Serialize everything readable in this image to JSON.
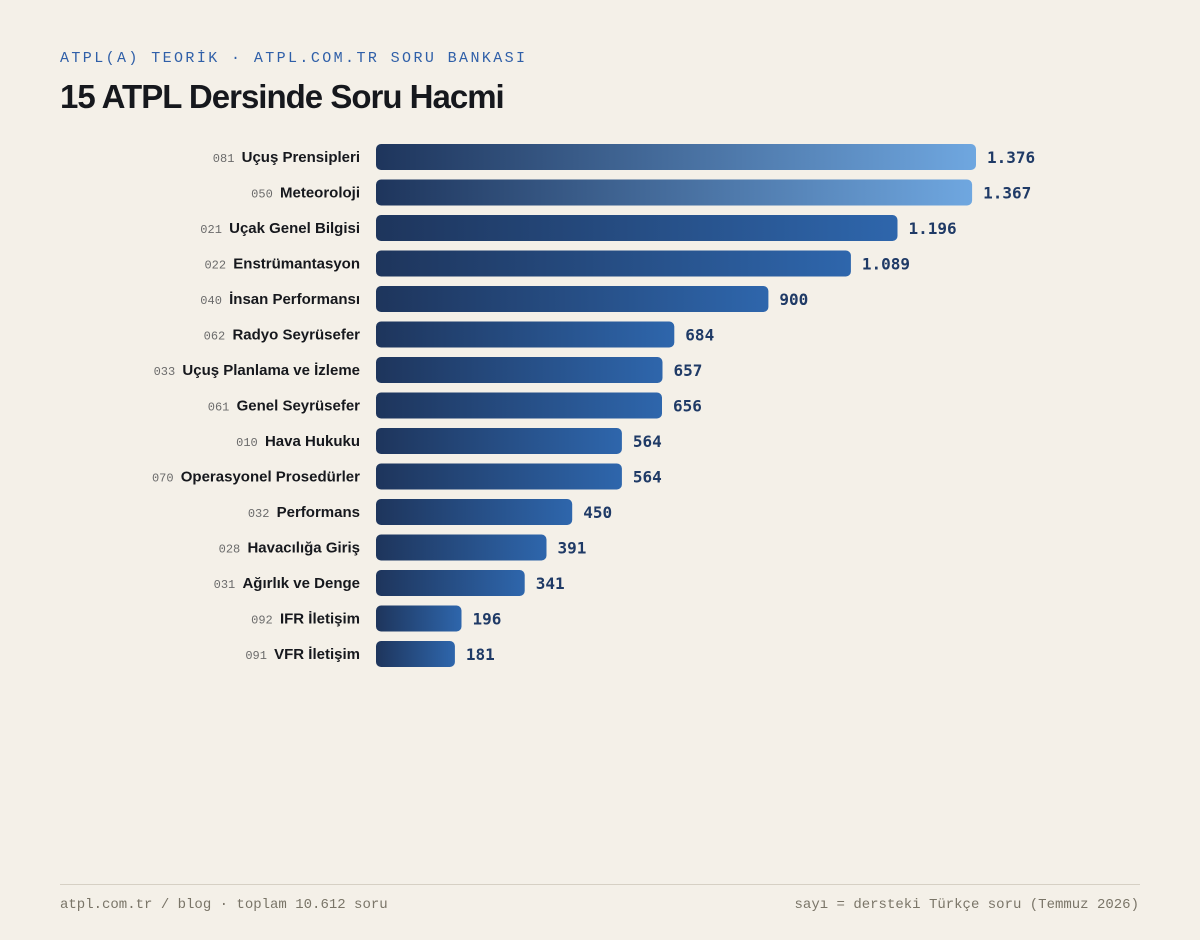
{
  "header": {
    "eyebrow": "ATPL(A) TEORİK · ATPL.COM.TR SORU BANKASI",
    "title": "15 ATPL Dersinde Soru Hacmi"
  },
  "colors": {
    "bar_dark": "#1e355c",
    "bar_mid": "#2e66ac",
    "bar_light": "#6fa7e0",
    "value_text": "#1f3a66",
    "background": "#f4f0e8"
  },
  "chart_data": {
    "type": "bar",
    "orientation": "horizontal",
    "title": "15 ATPL Dersinde Soru Hacmi",
    "xlim": [
      0,
      1376
    ],
    "grid": false,
    "legend": "none",
    "categories": [
      {
        "code": "081",
        "name": "Uçuş Prensipleri"
      },
      {
        "code": "050",
        "name": "Meteoroloji"
      },
      {
        "code": "021",
        "name": "Uçak Genel Bilgisi"
      },
      {
        "code": "022",
        "name": "Enstrümantasyon"
      },
      {
        "code": "040",
        "name": "İnsan Performansı"
      },
      {
        "code": "062",
        "name": "Radyo Seyrüsefer"
      },
      {
        "code": "033",
        "name": "Uçuş Planlama ve İzleme"
      },
      {
        "code": "061",
        "name": "Genel Seyrüsefer"
      },
      {
        "code": "010",
        "name": "Hava Hukuku"
      },
      {
        "code": "070",
        "name": "Operasyonel Prosedürler"
      },
      {
        "code": "032",
        "name": "Performans"
      },
      {
        "code": "028",
        "name": "Havacılığa Giriş"
      },
      {
        "code": "031",
        "name": "Ağırlık ve Denge"
      },
      {
        "code": "092",
        "name": "IFR İletişim"
      },
      {
        "code": "091",
        "name": "VFR İletişim"
      }
    ],
    "values": [
      1376,
      1367,
      1196,
      1089,
      900,
      684,
      657,
      656,
      564,
      564,
      450,
      391,
      341,
      196,
      181
    ],
    "value_labels": [
      "1.376",
      "1.367",
      "1.196",
      "1.089",
      "900",
      "684",
      "657",
      "656",
      "564",
      "564",
      "450",
      "391",
      "341",
      "196",
      "181"
    ]
  },
  "footer": {
    "left": "atpl.com.tr / blog · toplam 10.612 soru",
    "right": "sayı = dersteki Türkçe soru (Temmuz 2026)"
  }
}
